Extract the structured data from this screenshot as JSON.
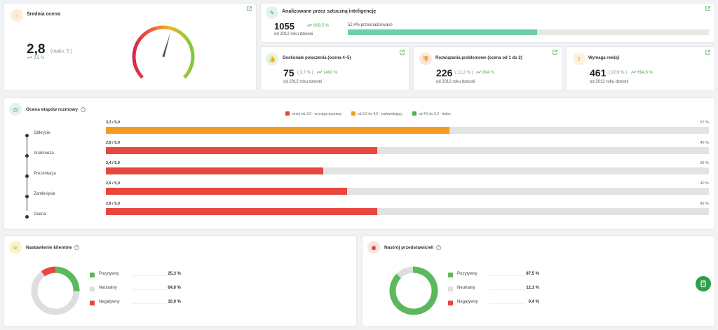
{
  "avg": {
    "title": "Średnia ocena",
    "value": "2,8",
    "max": "(maks. 5 )",
    "trend": "2,5 %",
    "needle_value": 2.8,
    "needle_max": 5
  },
  "ai": {
    "title": "Analizowane przez sztuczną inteligencję",
    "count": "1055",
    "trend": "809,5 %",
    "since": "od 2012 roku dzwoni",
    "progress_label": "52,4% przeanalizowano",
    "progress": 0.524
  },
  "kpis": [
    {
      "title": "Doskonałe połączenia (ocena 4–5)",
      "count": "75",
      "pct": "( 3,7 % )",
      "trend": "1400 %",
      "since": "od 2012 roku dzwoni",
      "icon": "thumbs-up-icon",
      "color": "#4caf50",
      "bg": "#e3f3e5"
    },
    {
      "title": "Rozwiązania problemowe (ocena od 1 do 2)",
      "count": "226",
      "pct": "( 11,2 % )",
      "trend": "804 %",
      "since": "od 2012 roku dzwoni",
      "icon": "thumbs-down-icon",
      "color": "#e04545",
      "bg": "#fbe4e4"
    },
    {
      "title": "Wymaga rewizji",
      "count": "461",
      "pct": "( 22,9 % )",
      "trend": "694,6 %",
      "since": "od 2012 roku dzwoni",
      "icon": "exclamation-icon",
      "color": "#e08a00",
      "bg": "#fdf0dd"
    }
  ],
  "stages": {
    "title": "Ocena etapów rozmowy",
    "legend": [
      {
        "label": "mniej niż 3,0 - wymaga poprawy",
        "color": "#e8473f"
      },
      {
        "label": "od 3,0 do 4,0 - zadowalający",
        "color": "#f39c1f"
      },
      {
        "label": "od 4,0 do 5,0 - dobry",
        "color": "#4caf50"
      }
    ],
    "items": [
      {
        "name": "Odkrycie",
        "score": "3,3 / 5,0",
        "pct_label": "57 %",
        "fraction": 0.57,
        "color": "#f39c1f"
      },
      {
        "name": "Anamneza",
        "score": "2,8 / 5,0",
        "pct_label": "45 %",
        "fraction": 0.45,
        "color": "#e8473f"
      },
      {
        "name": "Prezentacja",
        "score": "2,4 / 5,0",
        "pct_label": "36 %",
        "fraction": 0.36,
        "color": "#e8473f"
      },
      {
        "name": "Zamknięcie",
        "score": "2,6 / 5,0",
        "pct_label": "40 %",
        "fraction": 0.4,
        "color": "#e8473f"
      },
      {
        "name": "Ocena",
        "score": "2,8 / 5,0",
        "pct_label": "45 %",
        "fraction": 0.45,
        "color": "#e8473f"
      }
    ]
  },
  "clients": {
    "title": "Nastawienie klientów",
    "items": [
      {
        "name": "Pozytywny",
        "pct": "25,3 %",
        "value": 25.3,
        "color": "#5cb85c"
      },
      {
        "name": "Neutralny",
        "pct": "64,6 %",
        "value": 64.6,
        "color": "#dedede"
      },
      {
        "name": "Negatywny",
        "pct": "10,0 %",
        "value": 10.0,
        "color": "#e8473f"
      }
    ]
  },
  "reps": {
    "title": "Nastrój przedstawicieli",
    "items": [
      {
        "name": "Pozytywny",
        "pct": "87,5 %",
        "value": 87.5,
        "color": "#5cb85c"
      },
      {
        "name": "Neutralny",
        "pct": "12,1 %",
        "value": 12.1,
        "color": "#dedede"
      },
      {
        "name": "Negatywny",
        "pct": "0,4 %",
        "value": 0.4,
        "color": "#e8473f"
      }
    ]
  }
}
